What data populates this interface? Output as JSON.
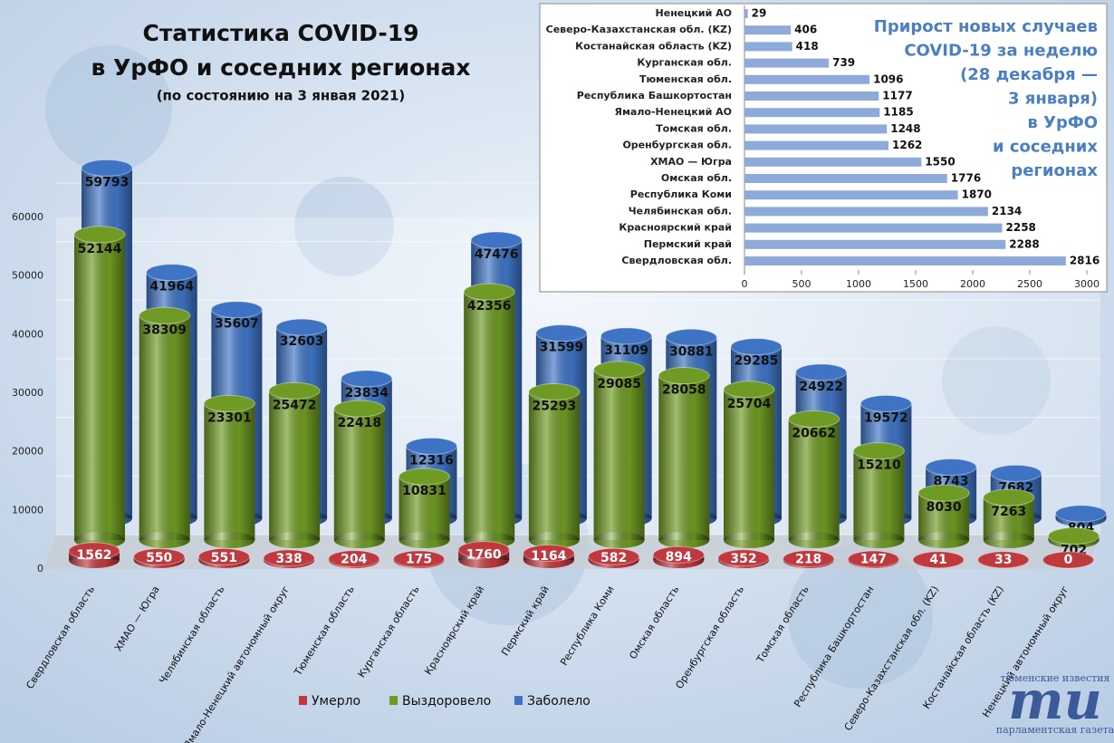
{
  "chart_data": [
    {
      "type": "bar",
      "title_lines": [
        "Статистика COVID-19",
        "в УрФО и соседних регионах"
      ],
      "subtitle": "(по состоянию на 3 янвая 2021)",
      "categories": [
        "Свердловская область",
        "ХМАО — Югра",
        "Челябинская область",
        "Ямало-Ненецкий автономный округ",
        "Тюменская область",
        "Курганская область",
        "Красноярский край",
        "Пермский край",
        "Республика Коми",
        "Омская область",
        "Оренбургская область",
        "Томская область",
        "Республика Башкортостан",
        "Северо-Казахстанская обл. (KZ)",
        "Костанайская область (KZ)",
        "Ненецкий автономный округ"
      ],
      "series": [
        {
          "name": "Умерло",
          "color": "#c0393f",
          "values": [
            1562,
            550,
            551,
            338,
            204,
            175,
            1760,
            1164,
            582,
            894,
            352,
            218,
            147,
            41,
            33,
            0
          ]
        },
        {
          "name": "Выздоровело",
          "color": "#6f9a24",
          "values": [
            52144,
            38309,
            23301,
            25472,
            22418,
            10831,
            42356,
            25293,
            29085,
            28058,
            25704,
            20662,
            15210,
            8030,
            7263,
            702
          ]
        },
        {
          "name": "Заболело",
          "color": "#3f74c4",
          "values": [
            59793,
            41964,
            35607,
            32603,
            23834,
            12316,
            47476,
            31599,
            31109,
            30881,
            29285,
            24922,
            19572,
            8743,
            7682,
            804
          ]
        }
      ],
      "ylim": [
        0,
        60000
      ],
      "yticks": [
        0,
        10000,
        20000,
        30000,
        40000,
        50000,
        60000
      ],
      "grid": true,
      "legend": "bottom"
    },
    {
      "type": "barh",
      "title_lines": [
        "Прирост новых случаев",
        "COVID-19 за неделю",
        "(28 декабря —",
        "3 января)",
        "в УрФО",
        "и соседних",
        "регионах"
      ],
      "categories": [
        "Ненецкий АО",
        "Северо-Казахстанская обл. (KZ)",
        "Костанайская область (KZ)",
        "Курганская обл.",
        "Тюменская обл.",
        "Республика Башкортостан",
        "Ямало-Ненецкий АО",
        "Томская обл.",
        "Оренбургская обл.",
        "ХМАО — Югра",
        "Омская обл.",
        "Республика Коми",
        "Челябинская обл.",
        "Красноярский край",
        "Пермский край",
        "Свердловская обл."
      ],
      "values": [
        29,
        406,
        418,
        739,
        1096,
        1177,
        1185,
        1248,
        1262,
        1550,
        1776,
        1870,
        2134,
        2258,
        2288,
        2816
      ],
      "color": "#8eaadb",
      "xlim": [
        0,
        3000
      ],
      "xticks": [
        0,
        500,
        1000,
        1500,
        2000,
        2500,
        3000
      ]
    }
  ],
  "logo": {
    "top": "тюменские известия",
    "mark": "ти",
    "bottom": "парламентская газета"
  }
}
